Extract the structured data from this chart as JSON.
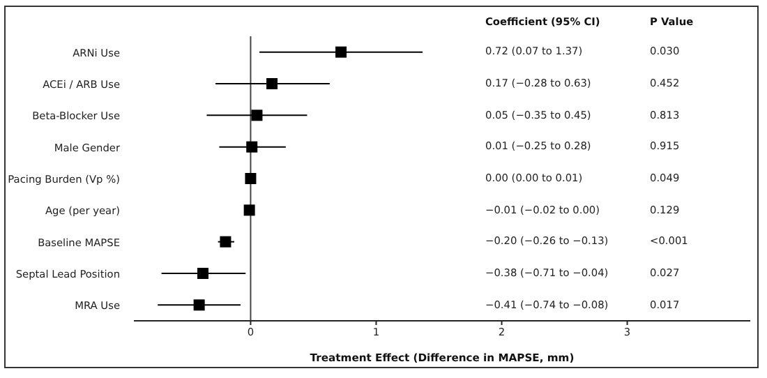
{
  "chart_data": {
    "type": "scatter",
    "xlabel": "Treatment Effect (Difference in MAPSE, mm)",
    "categories": [
      "ARNi Use",
      "ACEi / ARB Use",
      "Beta-Blocker Use",
      "Male Gender",
      "Pacing Burden (Vp %)",
      "Age (per year)",
      "Baseline MAPSE",
      "Septal Lead Position",
      "MRA Use"
    ],
    "orientation": "horizontal",
    "values": [
      0.72,
      0.17,
      0.05,
      0.01,
      0.0,
      -0.01,
      -0.2,
      -0.38,
      -0.41
    ],
    "errors": [
      [
        0.07,
        1.37
      ],
      [
        -0.28,
        0.63
      ],
      [
        -0.35,
        0.45
      ],
      [
        -0.25,
        0.28
      ],
      [
        0.0,
        0.01
      ],
      [
        -0.02,
        0.0
      ],
      [
        -0.26,
        -0.13
      ],
      [
        -0.71,
        -0.04
      ],
      [
        -0.74,
        -0.08
      ]
    ],
    "annotations": [
      "Coefficient (95% CI)",
      "P Value",
      "0.72 (0.07 to 1.37)",
      "0.17 (−0.28 to 0.63)",
      "0.05 (−0.35 to 0.45)",
      "0.01 (−0.25 to 0.28)",
      "0.00 (0.00 to 0.01)",
      "−0.01 (−0.02 to 0.00)",
      "−0.20 (−0.26 to −0.13)",
      "−0.38 (−0.71 to −0.04)",
      "−0.41 (−0.74 to −0.08)",
      "0.030",
      "0.452",
      "0.813",
      "0.915",
      "0.049",
      "0.129",
      "<0.001",
      "0.027",
      "0.017"
    ],
    "color": "#000000",
    "marker": "square",
    "xlim": [
      -0.93,
      3.98
    ],
    "xticks": [
      0,
      1,
      2,
      3
    ],
    "ref_lines": [
      {
        "axis": "x",
        "value": 0,
        "color": "#444444"
      }
    ]
  }
}
